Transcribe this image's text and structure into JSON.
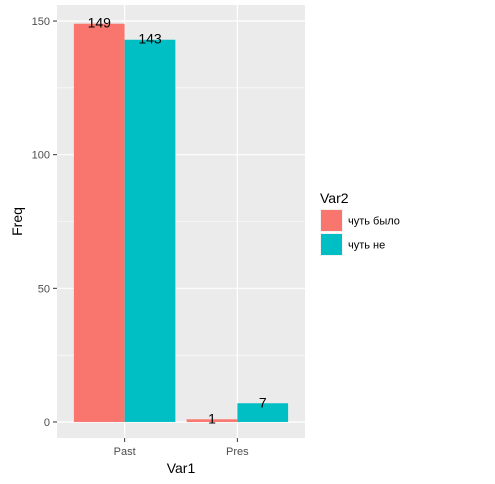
{
  "chart_data": {
    "type": "bar",
    "categories": [
      "Past",
      "Pres"
    ],
    "series": [
      {
        "name": "чуть было",
        "values": [
          149,
          1
        ],
        "color": "#F8766D"
      },
      {
        "name": "чуть не",
        "values": [
          143,
          7
        ],
        "color": "#00BFC4"
      }
    ],
    "data_labels": [
      [
        "149",
        "1"
      ],
      [
        "143",
        "7"
      ]
    ],
    "xlabel": "Var1",
    "ylabel": "Freq",
    "ylim": [
      -6,
      156
    ],
    "yticks": [
      0,
      50,
      100,
      150
    ],
    "ytick_labels": [
      "0",
      "50",
      "100",
      "150"
    ],
    "grid": true,
    "legend_title": "Var2",
    "legend_position": "right",
    "panel_color": "#EBEBEB",
    "grid_color": "#FFFFFF"
  }
}
